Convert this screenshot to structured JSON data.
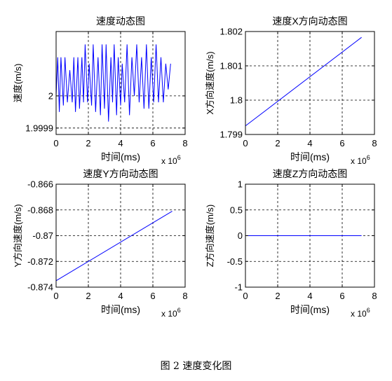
{
  "caption": "图 2  速度变化图",
  "chart_data": [
    {
      "type": "line",
      "title": "速度动态图",
      "xlabel": "时间(ms)",
      "ylabel": "速度(m/s)",
      "xlim": [
        0,
        8
      ],
      "ylim": [
        1.99988,
        2.0002
      ],
      "x_multiplier": "x 10^6",
      "xticks": [
        0,
        2,
        4,
        6,
        8
      ],
      "yticks": [
        1.9999,
        2
      ],
      "ytick_labels": [
        "1.9999",
        "2"
      ],
      "grid": true,
      "series": [
        {
          "color": "#0000ff",
          "x": [
            0,
            0.1,
            0.2,
            0.3,
            0.45,
            0.55,
            0.7,
            0.85,
            1.0,
            1.1,
            1.2,
            1.35,
            1.45,
            1.6,
            1.7,
            1.8,
            1.95,
            2.05,
            2.2,
            2.3,
            2.45,
            2.6,
            2.75,
            2.85,
            3.0,
            3.1,
            3.25,
            3.4,
            3.5,
            3.6,
            3.75,
            3.85,
            4.0,
            4.1,
            4.25,
            4.4,
            4.55,
            4.7,
            4.85,
            5.0,
            5.15,
            5.3,
            5.45,
            5.6,
            5.75,
            5.9,
            6.05,
            6.2,
            6.35,
            6.5,
            6.65,
            6.8,
            6.95,
            7.1
          ],
          "y": [
            2.0,
            2.00012,
            1.99995,
            2.00012,
            1.99997,
            2.00012,
            1.99998,
            2.00008,
            1.99998,
            2.00012,
            1.99995,
            2.00012,
            1.99996,
            2.00012,
            1.99998,
            2.00016,
            1.99998,
            2.0001,
            1.99997,
            2.00016,
            1.99995,
            2.00012,
            1.99994,
            2.00016,
            1.99996,
            2.00016,
            1.99992,
            2.00012,
            1.99998,
            2.00016,
            1.99994,
            2.00012,
            1.99997,
            2.0001,
            1.99998,
            2.00016,
            1.99994,
            2.00012,
            2.0,
            2.00016,
            1.99998,
            2.00012,
            1.99996,
            2.00016,
            1.99996,
            2.00012,
            1.99998,
            2.00016,
            1.99998,
            2.00012,
            1.99998,
            2.0001,
            2.00002,
            2.0001
          ]
        }
      ]
    },
    {
      "type": "line",
      "title": "速度X方向动态图",
      "xlabel": "时间(ms)",
      "ylabel": "X方向速度(m/s)",
      "xlim": [
        0,
        8
      ],
      "ylim": [
        1.799,
        1.802
      ],
      "x_multiplier": "x 10^6",
      "xticks": [
        0,
        2,
        4,
        6,
        8
      ],
      "yticks": [
        1.799,
        1.8,
        1.801,
        1.802
      ],
      "ytick_labels": [
        "1.799",
        "1.8",
        "1.801",
        "1.802"
      ],
      "grid": true,
      "series": [
        {
          "color": "#0000ff",
          "x": [
            0,
            7.2
          ],
          "y": [
            1.79925,
            1.80183
          ]
        }
      ]
    },
    {
      "type": "line",
      "title": "速度Y方向动态图",
      "xlabel": "时间(ms)",
      "ylabel": "Y方向速度(m/s)",
      "xlim": [
        0,
        8
      ],
      "ylim": [
        -0.874,
        -0.866
      ],
      "x_multiplier": "x 10^6",
      "xticks": [
        0,
        2,
        4,
        6,
        8
      ],
      "yticks": [
        -0.874,
        -0.872,
        -0.87,
        -0.868,
        -0.866
      ],
      "ytick_labels": [
        "-0.874",
        "-0.872",
        "-0.87",
        "-0.868",
        "-0.866"
      ],
      "grid": true,
      "series": [
        {
          "color": "#0000ff",
          "x": [
            0,
            7.2
          ],
          "y": [
            -0.8735,
            -0.8681
          ]
        }
      ]
    },
    {
      "type": "line",
      "title": "速度Z方向动态图",
      "xlabel": "时间(ms)",
      "ylabel": "Z方向速度(m/s)",
      "xlim": [
        0,
        8
      ],
      "ylim": [
        -1,
        1
      ],
      "x_multiplier": "x 10^6",
      "xticks": [
        0,
        2,
        4,
        6,
        8
      ],
      "yticks": [
        -1,
        -0.5,
        0,
        0.5,
        1
      ],
      "ytick_labels": [
        "-1",
        "-0.5",
        "0",
        "0.5",
        "1"
      ],
      "grid": true,
      "series": [
        {
          "color": "#0000ff",
          "x": [
            0,
            7.2
          ],
          "y": [
            0,
            0
          ]
        }
      ]
    }
  ]
}
